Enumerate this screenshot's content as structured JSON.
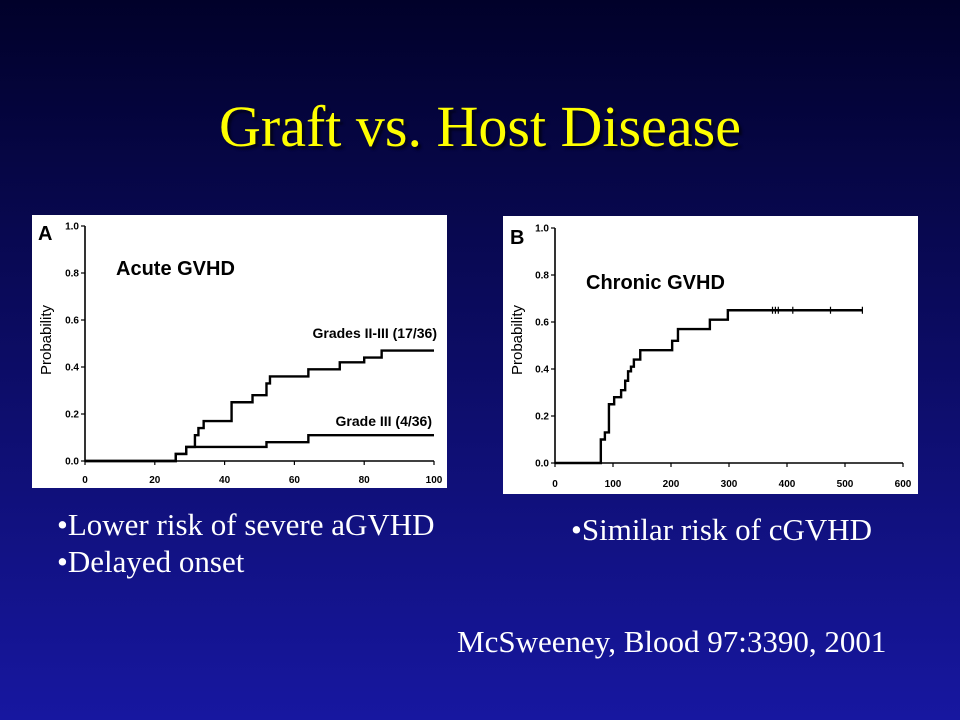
{
  "slide": {
    "title": "Graft vs. Host Disease",
    "left_bullets": [
      "•Lower risk of severe aGVHD",
      "•Delayed onset"
    ],
    "right_bullets": [
      "•Similar risk of cGVHD"
    ],
    "citation": "McSweeney, Blood 97:3390, 2001"
  },
  "colors": {
    "background_top": "#01012a",
    "background_bottom": "#1717a0",
    "title": "#FFFF00",
    "body_text": "#FFFFFF",
    "chart_panel": "#FFFFFF",
    "chart_ink": "#000000"
  },
  "chart_data": [
    {
      "panel": "A",
      "type": "line",
      "drawstyle": "steps-post",
      "title": "Acute GVHD",
      "xlabel": "",
      "ylabel": "Probability",
      "xlim": [
        0,
        100
      ],
      "ylim": [
        0,
        1.0
      ],
      "x_ticks": [
        "0",
        "20",
        "40",
        "60",
        "80",
        "100"
      ],
      "y_ticks": [
        "0.0",
        "0.2",
        "0.4",
        "0.6",
        "0.8",
        "1.0"
      ],
      "grid": false,
      "series": [
        {
          "name": "Grades II-III (17/36)",
          "x": [
            0,
            26,
            29,
            31.5,
            32.5,
            34,
            42,
            48,
            52,
            53,
            64,
            73,
            80,
            85,
            100
          ],
          "y": [
            0,
            0.03,
            0.06,
            0.11,
            0.14,
            0.17,
            0.25,
            0.28,
            0.33,
            0.36,
            0.39,
            0.42,
            0.44,
            0.47,
            0.47
          ]
        },
        {
          "name": "Grade III (4/36)",
          "x": [
            0,
            26,
            29,
            52,
            64,
            100
          ],
          "y": [
            0,
            0.03,
            0.06,
            0.08,
            0.11,
            0.11
          ]
        }
      ]
    },
    {
      "panel": "B",
      "type": "line",
      "drawstyle": "steps-post",
      "title": "Chronic GVHD",
      "xlabel": "",
      "ylabel": "Probability",
      "xlim": [
        0,
        600
      ],
      "ylim": [
        0,
        1.0
      ],
      "x_ticks": [
        "0",
        "100",
        "200",
        "300",
        "400",
        "500",
        "600"
      ],
      "y_ticks": [
        "0.0",
        "0.2",
        "0.4",
        "0.6",
        "0.8",
        "1.0"
      ],
      "grid": false,
      "series": [
        {
          "x": [
            0,
            79,
            86,
            93,
            102,
            114,
            121,
            126,
            131,
            136,
            147,
            202,
            212,
            267,
            298,
            530
          ],
          "y": [
            0,
            0.1,
            0.13,
            0.25,
            0.28,
            0.31,
            0.35,
            0.39,
            0.41,
            0.44,
            0.48,
            0.52,
            0.57,
            0.61,
            0.65,
            0.65
          ],
          "censored": [
            375,
            380,
            385,
            410,
            475,
            530
          ]
        }
      ]
    }
  ]
}
